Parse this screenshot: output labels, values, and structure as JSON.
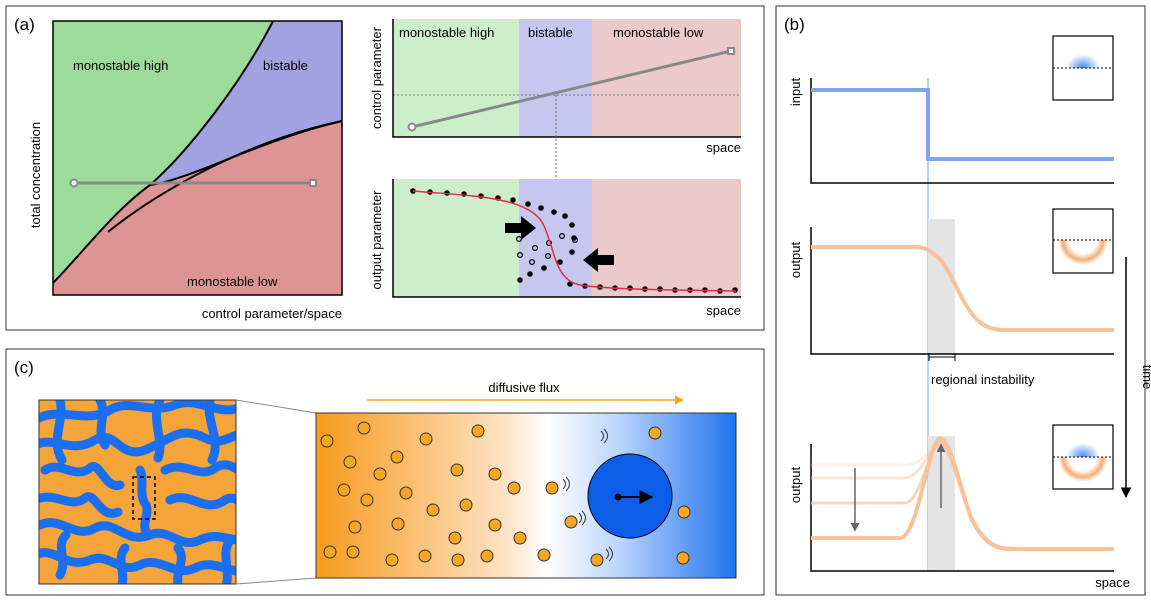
{
  "panel_a": {
    "label": "(a)",
    "phase": {
      "region_high": "monostable high",
      "region_bistable": "bistable",
      "region_low": "monostable low",
      "ylabel": "total concentration",
      "xlabel": "control parameter/space"
    },
    "control": {
      "band_high": "monostable high",
      "band_bistable": "bistable",
      "band_low": "monostable low",
      "ylabel": "control parameter",
      "xlabel": "space"
    },
    "output": {
      "ylabel": "output parameter",
      "xlabel": "space"
    }
  },
  "panel_b": {
    "label": "(b)",
    "input_ylabel": "input",
    "output1_ylabel": "output",
    "output2_ylabel": "output",
    "instability_label": "regional instability",
    "time_label": "time",
    "xlabel": "space"
  },
  "panel_c": {
    "label": "(c)",
    "flux_label": "diffusive flux"
  },
  "colors": {
    "green": "#9ddb9a",
    "purple": "#a2a2e2",
    "red": "#dd9593",
    "blue_line": "#7fa7ea",
    "orange_line": "#f7c299",
    "orange_particle": "#f5a623",
    "blue_pattern": "#1a6ff0"
  }
}
